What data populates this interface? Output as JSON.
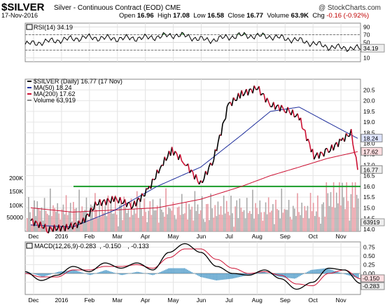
{
  "header": {
    "symbol": "$SILVER",
    "subtitle": "Silver - Continuous Contract (EOD)  CME",
    "brand": "@ StockCharts.com",
    "date": "17-Nov-2016",
    "open_label": "Open",
    "open": "16.96",
    "high_label": "High",
    "high": "17.08",
    "low_label": "Low",
    "low": "16.58",
    "close_label": "Close",
    "close": "16.77",
    "volume_label": "Volume",
    "volume": "63.9K",
    "change_label": "Chg",
    "change": "-0.16 (-0.92%)",
    "change_arrow": "▼"
  },
  "chart_data": [
    {
      "type": "line",
      "panel": "RSI",
      "title": "RSI(14) 34.19",
      "ylim": [
        0,
        100
      ],
      "y_ticks": [
        "90",
        "70",
        "50",
        "30",
        "10"
      ],
      "last_value_tag": "34.19",
      "overbought": 70,
      "oversold": 30,
      "series": [
        {
          "name": "RSI(14)",
          "x": [
            "Dec",
            "Jan",
            "Feb",
            "Mar",
            "Apr",
            "May",
            "Jun",
            "Jul",
            "Aug",
            "Sep",
            "Oct",
            "Nov"
          ],
          "values": [
            45,
            55,
            63,
            60,
            62,
            70,
            55,
            68,
            66,
            55,
            38,
            34
          ]
        }
      ]
    },
    {
      "type": "line",
      "panel": "Price",
      "legend": [
        {
          "text": "$SILVER (Daily) 16.77 (17 Nov)",
          "color": "#000000"
        },
        {
          "text": "MA(50) 18.24",
          "color": "#1f2f9c"
        },
        {
          "text": "MA(200) 17.62",
          "color": "#cc1133"
        },
        {
          "text": "Volume 63,919",
          "color": "#888888"
        }
      ],
      "ylim": [
        13.9,
        21.0
      ],
      "y_ticks": [
        "20.5",
        "20.0",
        "19.5",
        "19.0",
        "18.5",
        "18.0",
        "17.5",
        "17.0",
        "16.5",
        "16.0",
        "15.5",
        "15.0",
        "14.5",
        "14.0"
      ],
      "last_value_tags": [
        {
          "text": "18.24",
          "value": 18.24,
          "bg": "#dde3ff"
        },
        {
          "text": "17.62",
          "value": 17.62,
          "bg": "#ffdde0"
        },
        {
          "text": "16.77",
          "value": 16.77,
          "bg": "#eeeeee"
        }
      ],
      "support_line": 16.0,
      "volume_ticks": [
        "200K",
        "150K",
        "100K",
        "50000"
      ],
      "volume_last_tag": "63919",
      "x_labels": [
        "Dec",
        "2016",
        "Feb",
        "Mar",
        "Apr",
        "May",
        "Jun",
        "Jul",
        "Aug",
        "Sep",
        "Oct",
        "Nov"
      ],
      "series": [
        {
          "name": "$SILVER",
          "x": [
            "2015-12-01",
            "2015-12-20",
            "2016-01-10",
            "2016-01-25",
            "2016-02-10",
            "2016-03-01",
            "2016-03-20",
            "2016-04-05",
            "2016-04-20",
            "2016-05-01",
            "2016-05-15",
            "2016-06-01",
            "2016-06-15",
            "2016-07-01",
            "2016-07-15",
            "2016-08-01",
            "2016-08-15",
            "2016-09-01",
            "2016-09-15",
            "2016-10-01",
            "2016-10-15",
            "2016-11-01",
            "2016-11-10",
            "2016-11-17"
          ],
          "values": [
            14.4,
            14.0,
            14.1,
            14.3,
            15.2,
            15.4,
            15.1,
            15.8,
            17.0,
            17.7,
            17.1,
            16.1,
            17.3,
            19.8,
            20.3,
            20.6,
            19.8,
            19.6,
            19.2,
            17.4,
            17.6,
            18.2,
            18.5,
            16.77
          ]
        },
        {
          "name": "MA(50)",
          "x": [
            "2015-12-01",
            "2016-01-15",
            "2016-03-01",
            "2016-04-15",
            "2016-06-01",
            "2016-07-15",
            "2016-08-15",
            "2016-09-15",
            "2016-10-15",
            "2016-11-17"
          ],
          "values": [
            14.2,
            14.1,
            14.9,
            16.0,
            16.9,
            18.4,
            19.5,
            19.7,
            19.0,
            18.24
          ]
        },
        {
          "name": "MA(200)",
          "x": [
            "2015-12-01",
            "2016-01-15",
            "2016-03-01",
            "2016-04-15",
            "2016-06-01",
            "2016-07-15",
            "2016-08-15",
            "2016-09-15",
            "2016-10-15",
            "2016-11-17"
          ],
          "values": [
            15.0,
            14.8,
            14.9,
            15.0,
            15.4,
            16.0,
            16.5,
            16.9,
            17.3,
            17.62
          ]
        }
      ],
      "volume_pattern": [
        42,
        88,
        35,
        12,
        60,
        72,
        28,
        95,
        50,
        40,
        65,
        22,
        80,
        45,
        55,
        30,
        110,
        38,
        70,
        48
      ]
    },
    {
      "type": "line",
      "panel": "MACD",
      "legend": [
        {
          "text": "MACD(12,26,9)",
          "color": "#000000"
        },
        {
          "text": "-0.283",
          "color": "#000000"
        },
        {
          "text": ", -0.150",
          "color": "#cc1133"
        },
        {
          "text": ", -0.133",
          "color": "#3399cc"
        }
      ],
      "ylim": [
        -0.6,
        0.9
      ],
      "y_ticks": [
        "0.75",
        "0.50",
        "0.25",
        "0.00",
        "-0.25"
      ],
      "last_value_tags": [
        {
          "text": "-0.150",
          "value": -0.15
        },
        {
          "text": "-0.283",
          "value": -0.283
        }
      ],
      "x_labels": [
        "Dec",
        "2016",
        "Feb",
        "Mar",
        "Apr",
        "May",
        "Jun",
        "Jul",
        "Aug",
        "Sep",
        "Oct",
        "Nov"
      ],
      "series": [
        {
          "name": "MACD",
          "values": [
            0.05,
            -0.2,
            -0.05,
            0.2,
            0.05,
            0.3,
            0.15,
            0.3,
            0.1,
            0.6,
            0.85,
            0.6,
            0.2,
            0.0,
            -0.05,
            0.1,
            -0.15,
            -0.45,
            -0.25,
            0.15,
            0.1,
            -0.283
          ]
        },
        {
          "name": "Signal",
          "values": [
            0.0,
            -0.1,
            -0.1,
            0.1,
            0.1,
            0.2,
            0.2,
            0.25,
            0.15,
            0.45,
            0.7,
            0.7,
            0.4,
            0.15,
            0.0,
            0.05,
            -0.05,
            -0.3,
            -0.35,
            0.0,
            0.1,
            -0.15
          ]
        }
      ],
      "histogram": [
        0.05,
        -0.1,
        0.05,
        0.1,
        -0.05,
        0.1,
        -0.05,
        0.05,
        -0.05,
        0.15,
        0.15,
        -0.1,
        -0.2,
        -0.15,
        -0.05,
        0.05,
        -0.1,
        -0.15,
        0.1,
        0.15,
        0.0,
        -0.133
      ]
    }
  ]
}
